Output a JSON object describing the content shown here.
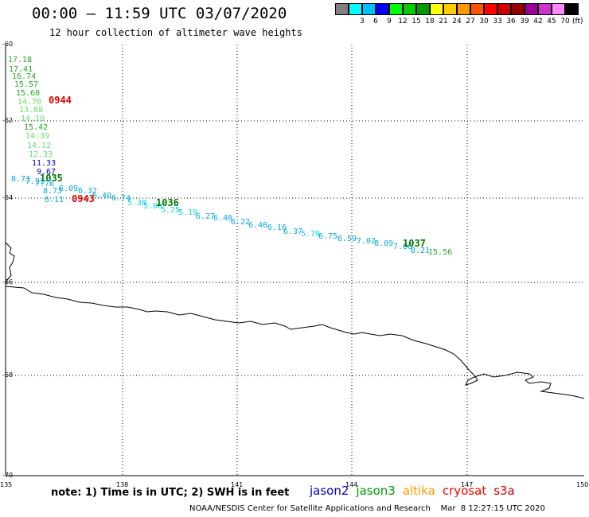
{
  "title": "00:00 – 11:59 UTC 03/07/2020",
  "subtitle": "12 hour collection of altimeter wave heights",
  "color_scale": {
    "unit": "(ft)",
    "bins": [
      {
        "label": "",
        "color": "#808080"
      },
      {
        "label": "3",
        "color": "#00ffff"
      },
      {
        "label": "6",
        "color": "#00bfff"
      },
      {
        "label": "9",
        "color": "#0000ff"
      },
      {
        "label": "12",
        "color": "#00ff00"
      },
      {
        "label": "15",
        "color": "#00cc00"
      },
      {
        "label": "18",
        "color": "#009900"
      },
      {
        "label": "21",
        "color": "#ffff00"
      },
      {
        "label": "24",
        "color": "#ffcc00"
      },
      {
        "label": "27",
        "color": "#ff9900"
      },
      {
        "label": "30",
        "color": "#ff5500"
      },
      {
        "label": "33",
        "color": "#ff0000"
      },
      {
        "label": "36",
        "color": "#cc0000"
      },
      {
        "label": "39",
        "color": "#990000"
      },
      {
        "label": "42",
        "color": "#990099"
      },
      {
        "label": "45",
        "color": "#cc33cc"
      },
      {
        "label": "70",
        "color": "#ff88ff"
      },
      {
        "label": "",
        "color": "#000000"
      }
    ]
  },
  "grid": {
    "lat_labels": [
      "-60",
      "-62",
      "-64",
      "-66",
      "-68",
      "-70"
    ],
    "lon_labels": [
      "135",
      "138",
      "141",
      "144",
      "147",
      "150"
    ]
  },
  "track1": {
    "time_label": "0944",
    "values": [
      "17.18",
      "17.41",
      "16.74",
      "15.57",
      "15.60",
      "14.70",
      "13.88",
      "14.10",
      "15.42",
      "14.39",
      "14.12",
      "12.33",
      "11.33",
      "9.67",
      "1035"
    ]
  },
  "track2": {
    "time_label": "0943",
    "values": [
      "8.73",
      "7.91",
      "7.76",
      "8.73",
      "6.09",
      "6.11",
      "6.32",
      "6.40",
      "6.74",
      "5.38",
      "5.08",
      "1036",
      "5.25",
      "5.19",
      "6.27",
      "6.40",
      "6.22",
      "6.40",
      "6.16",
      "6.37",
      "5.79",
      "6.75",
      "6.59",
      "7.02",
      "8.09",
      "7.86",
      "1037",
      "8.21",
      "15.56"
    ]
  },
  "footer": {
    "note": "note:  1) Time is in UTC;  2) SWH is in feet",
    "satellites": [
      {
        "name": "jason2",
        "color": "#0000cc"
      },
      {
        "name": "jason3",
        "color": "#009900"
      },
      {
        "name": "altika",
        "color": "#ff9900"
      },
      {
        "name": "cryosat",
        "color": "#ff0000"
      },
      {
        "name": "s3a",
        "color": "#cc0000"
      }
    ],
    "credit": "NOAA/NESDIS Center for Satellite Applications and Research    Mar  8 12:27:15 UTC 2020"
  }
}
